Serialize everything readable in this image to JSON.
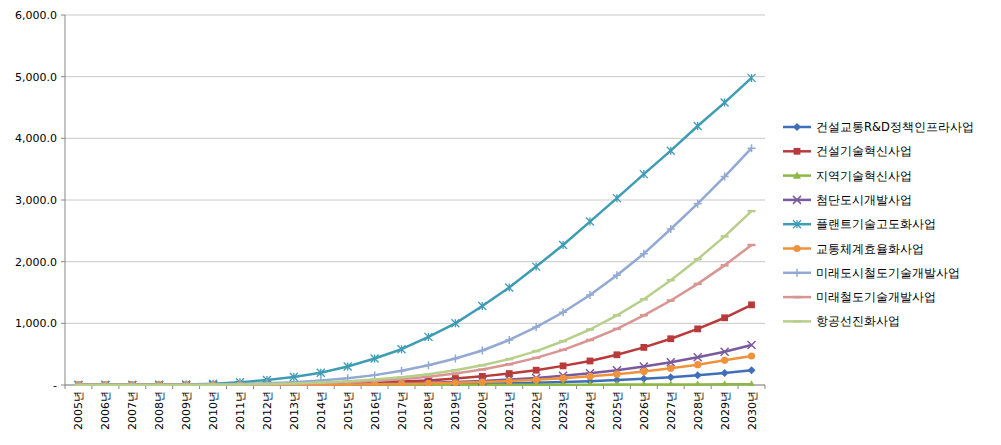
{
  "chart_data": {
    "type": "line",
    "categories": [
      "2005년",
      "2006년",
      "2007년",
      "2008년",
      "2009년",
      "2010년",
      "2011년",
      "2012년",
      "2013년",
      "2014년",
      "2015년",
      "2016년",
      "2017년",
      "2018년",
      "2019년",
      "2020년",
      "2021년",
      "2022년",
      "2023년",
      "2024년",
      "2025년",
      "2026년",
      "2027년",
      "2028년",
      "2029년",
      "2030년"
    ],
    "ylim": [
      0,
      6000
    ],
    "yticks": [
      {
        "value": 0,
        "label": "-"
      },
      {
        "value": 1000,
        "label": "1,000.0"
      },
      {
        "value": 2000,
        "label": "2,000.0"
      },
      {
        "value": 3000,
        "label": "3,000.0"
      },
      {
        "value": 4000,
        "label": "4,000.0"
      },
      {
        "value": 5000,
        "label": "5,000.0"
      },
      {
        "value": 6000,
        "label": "6,000.0"
      }
    ],
    "grid": true,
    "legend": "right",
    "series": [
      {
        "name": "건설교통R&D정책인프라사업",
        "color": "#3F6FB8",
        "marker": "diamond",
        "values": [
          0,
          0,
          0,
          0,
          0,
          0,
          0,
          0,
          1,
          2,
          3,
          5,
          8,
          11,
          15,
          21,
          28,
          37,
          48,
          62,
          80,
          100,
          125,
          160,
          195,
          240
        ]
      },
      {
        "name": "건설기술혁신사업",
        "color": "#B83A3A",
        "marker": "square",
        "values": [
          0,
          0,
          0,
          0,
          0,
          1,
          3,
          6,
          10,
          17,
          26,
          38,
          55,
          75,
          105,
          140,
          185,
          240,
          310,
          390,
          490,
          610,
          750,
          910,
          1090,
          1300
        ]
      },
      {
        "name": "지역기술혁신사업",
        "color": "#8DB845",
        "marker": "triangle",
        "values": [
          0,
          0,
          0,
          0,
          0,
          0,
          0,
          0.1,
          0.2,
          0.3,
          0.5,
          0.7,
          1,
          1.3,
          1.7,
          2.2,
          2.8,
          3.5,
          4.3,
          5.2,
          6.2,
          7.3,
          8.5,
          9.5,
          10.5,
          12
        ]
      },
      {
        "name": "첨단도시개발사업",
        "color": "#7A5A9E",
        "marker": "x",
        "values": [
          0,
          0,
          0,
          0,
          0,
          0,
          1,
          2,
          4,
          7,
          11,
          17,
          25,
          35,
          48,
          65,
          88,
          115,
          150,
          190,
          240,
          300,
          370,
          450,
          540,
          650
        ]
      },
      {
        "name": "플랜트기술고도화사업",
        "color": "#3E9CB5",
        "marker": "star",
        "values": [
          0,
          0,
          1,
          3,
          8,
          20,
          45,
          80,
          130,
          200,
          300,
          430,
          580,
          780,
          1000,
          1280,
          1580,
          1920,
          2270,
          2650,
          3030,
          3420,
          3800,
          4200,
          4580,
          4980
        ]
      },
      {
        "name": "교통체계효율화사업",
        "color": "#F0923C",
        "marker": "circle",
        "values": [
          0,
          0,
          0,
          0,
          0,
          0,
          1,
          2,
          3,
          5,
          8,
          12,
          18,
          26,
          36,
          48,
          65,
          85,
          110,
          140,
          175,
          220,
          270,
          330,
          400,
          470
        ]
      },
      {
        "name": "미래도시철도기술개발사업",
        "color": "#92A9D4",
        "marker": "plus",
        "values": [
          0,
          0,
          0,
          1,
          3,
          8,
          15,
          28,
          45,
          75,
          110,
          160,
          230,
          320,
          430,
          560,
          730,
          940,
          1180,
          1460,
          1780,
          2130,
          2530,
          2940,
          3380,
          3840
        ]
      },
      {
        "name": "미래철도기술개발사업",
        "color": "#D99592",
        "marker": "dash",
        "values": [
          0,
          0,
          0,
          0,
          0,
          2,
          5,
          10,
          18,
          30,
          45,
          65,
          95,
          135,
          185,
          250,
          335,
          440,
          570,
          730,
          910,
          1130,
          1370,
          1640,
          1940,
          2270
        ]
      },
      {
        "name": "항공선진화사업",
        "color": "#B7CF8A",
        "marker": "dash",
        "values": [
          0,
          0,
          0,
          0,
          1.5,
          4,
          8,
          15,
          25,
          40,
          60,
          88,
          125,
          175,
          240,
          320,
          420,
          550,
          710,
          900,
          1130,
          1390,
          1700,
          2040,
          2410,
          2820
        ]
      }
    ]
  }
}
